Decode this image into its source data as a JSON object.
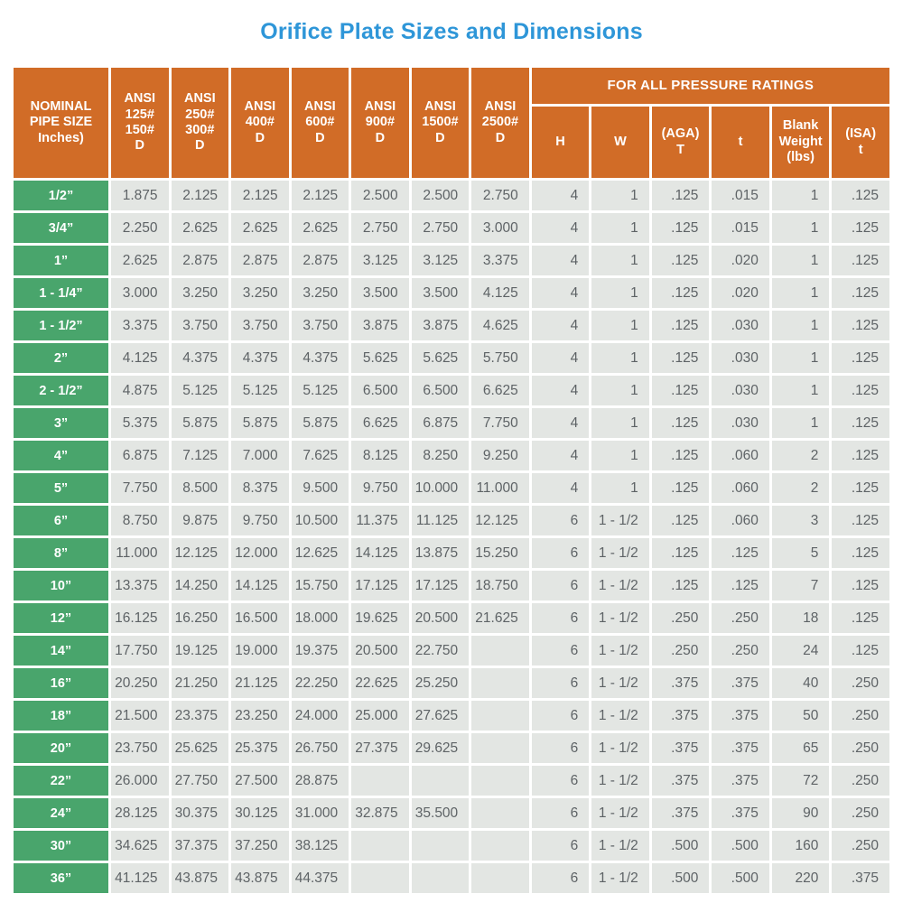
{
  "title": "Orifice Plate Sizes and Dimensions",
  "colors": {
    "title_blue": "#2e96d8",
    "header_orange": "#d16c27",
    "size_green": "#49a56c",
    "cell_bg": "#e3e6e3",
    "cell_text": "#5e6366",
    "page_bg": "#ffffff"
  },
  "table": {
    "nominal_header": "NOMINAL\nPIPE SIZE\nInches)",
    "ansi_headers": [
      "ANSI\n125#\n150#\nD",
      "ANSI\n250#\n300#\nD",
      "ANSI\n400#\nD",
      "ANSI\n600#\nD",
      "ANSI\n900#\nD",
      "ANSI\n1500#\nD",
      "ANSI\n2500#\nD"
    ],
    "group_header": "FOR ALL PRESSURE RATINGS",
    "sub_headers": [
      "H",
      "W",
      "(AGA)\nT",
      "t",
      "Blank\nWeight\n(lbs)",
      "(ISA)\nt"
    ],
    "rows": [
      {
        "size": "1/2”",
        "values": [
          "1.875",
          "2.125",
          "2.125",
          "2.125",
          "2.500",
          "2.500",
          "2.750",
          "4",
          "1",
          ".125",
          ".015",
          "1",
          ".125"
        ]
      },
      {
        "size": "3/4”",
        "values": [
          "2.250",
          "2.625",
          "2.625",
          "2.625",
          "2.750",
          "2.750",
          "3.000",
          "4",
          "1",
          ".125",
          ".015",
          "1",
          ".125"
        ]
      },
      {
        "size": "1”",
        "values": [
          "2.625",
          "2.875",
          "2.875",
          "2.875",
          "3.125",
          "3.125",
          "3.375",
          "4",
          "1",
          ".125",
          ".020",
          "1",
          ".125"
        ]
      },
      {
        "size": "1 - 1/4”",
        "values": [
          "3.000",
          "3.250",
          "3.250",
          "3.250",
          "3.500",
          "3.500",
          "4.125",
          "4",
          "1",
          ".125",
          ".020",
          "1",
          ".125"
        ]
      },
      {
        "size": "1 - 1/2”",
        "values": [
          "3.375",
          "3.750",
          "3.750",
          "3.750",
          "3.875",
          "3.875",
          "4.625",
          "4",
          "1",
          ".125",
          ".030",
          "1",
          ".125"
        ]
      },
      {
        "size": "2”",
        "values": [
          "4.125",
          "4.375",
          "4.375",
          "4.375",
          "5.625",
          "5.625",
          "5.750",
          "4",
          "1",
          ".125",
          ".030",
          "1",
          ".125"
        ]
      },
      {
        "size": "2 - 1/2”",
        "values": [
          "4.875",
          "5.125",
          "5.125",
          "5.125",
          "6.500",
          "6.500",
          "6.625",
          "4",
          "1",
          ".125",
          ".030",
          "1",
          ".125"
        ]
      },
      {
        "size": "3”",
        "values": [
          "5.375",
          "5.875",
          "5.875",
          "5.875",
          "6.625",
          "6.875",
          "7.750",
          "4",
          "1",
          ".125",
          ".030",
          "1",
          ".125"
        ]
      },
      {
        "size": "4”",
        "values": [
          "6.875",
          "7.125",
          "7.000",
          "7.625",
          "8.125",
          "8.250",
          "9.250",
          "4",
          "1",
          ".125",
          ".060",
          "2",
          ".125"
        ]
      },
      {
        "size": "5”",
        "values": [
          "7.750",
          "8.500",
          "8.375",
          "9.500",
          "9.750",
          "10.000",
          "11.000",
          "4",
          "1",
          ".125",
          ".060",
          "2",
          ".125"
        ]
      },
      {
        "size": "6”",
        "values": [
          "8.750",
          "9.875",
          "9.750",
          "10.500",
          "11.375",
          "11.125",
          "12.125",
          "6",
          "1 - 1/2",
          ".125",
          ".060",
          "3",
          ".125"
        ]
      },
      {
        "size": "8”",
        "values": [
          "11.000",
          "12.125",
          "12.000",
          "12.625",
          "14.125",
          "13.875",
          "15.250",
          "6",
          "1 - 1/2",
          ".125",
          ".125",
          "5",
          ".125"
        ]
      },
      {
        "size": "10”",
        "values": [
          "13.375",
          "14.250",
          "14.125",
          "15.750",
          "17.125",
          "17.125",
          "18.750",
          "6",
          "1 - 1/2",
          ".125",
          ".125",
          "7",
          ".125"
        ]
      },
      {
        "size": "12”",
        "values": [
          "16.125",
          "16.250",
          "16.500",
          "18.000",
          "19.625",
          "20.500",
          "21.625",
          "6",
          "1 - 1/2",
          ".250",
          ".250",
          "18",
          ".125"
        ]
      },
      {
        "size": "14”",
        "values": [
          "17.750",
          "19.125",
          "19.000",
          "19.375",
          "20.500",
          "22.750",
          "",
          "6",
          "1 - 1/2",
          ".250",
          ".250",
          "24",
          ".125"
        ]
      },
      {
        "size": "16”",
        "values": [
          "20.250",
          "21.250",
          "21.125",
          "22.250",
          "22.625",
          "25.250",
          "",
          "6",
          "1 - 1/2",
          ".375",
          ".375",
          "40",
          ".250"
        ]
      },
      {
        "size": "18”",
        "values": [
          "21.500",
          "23.375",
          "23.250",
          "24.000",
          "25.000",
          "27.625",
          "",
          "6",
          "1 - 1/2",
          ".375",
          ".375",
          "50",
          ".250"
        ]
      },
      {
        "size": "20”",
        "values": [
          "23.750",
          "25.625",
          "25.375",
          "26.750",
          "27.375",
          "29.625",
          "",
          "6",
          "1 - 1/2",
          ".375",
          ".375",
          "65",
          ".250"
        ]
      },
      {
        "size": "22”",
        "values": [
          "26.000",
          "27.750",
          "27.500",
          "28.875",
          "",
          "",
          "",
          "6",
          "1 - 1/2",
          ".375",
          ".375",
          "72",
          ".250"
        ]
      },
      {
        "size": "24”",
        "values": [
          "28.125",
          "30.375",
          "30.125",
          "31.000",
          "32.875",
          "35.500",
          "",
          "6",
          "1 - 1/2",
          ".375",
          ".375",
          "90",
          ".250"
        ]
      },
      {
        "size": "30”",
        "values": [
          "34.625",
          "37.375",
          "37.250",
          "38.125",
          "",
          "",
          "",
          "6",
          "1 - 1/2",
          ".500",
          ".500",
          "160",
          ".250"
        ]
      },
      {
        "size": "36”",
        "values": [
          "41.125",
          "43.875",
          "43.875",
          "44.375",
          "",
          "",
          "",
          "6",
          "1 - 1/2",
          ".500",
          ".500",
          "220",
          ".375"
        ]
      }
    ]
  }
}
